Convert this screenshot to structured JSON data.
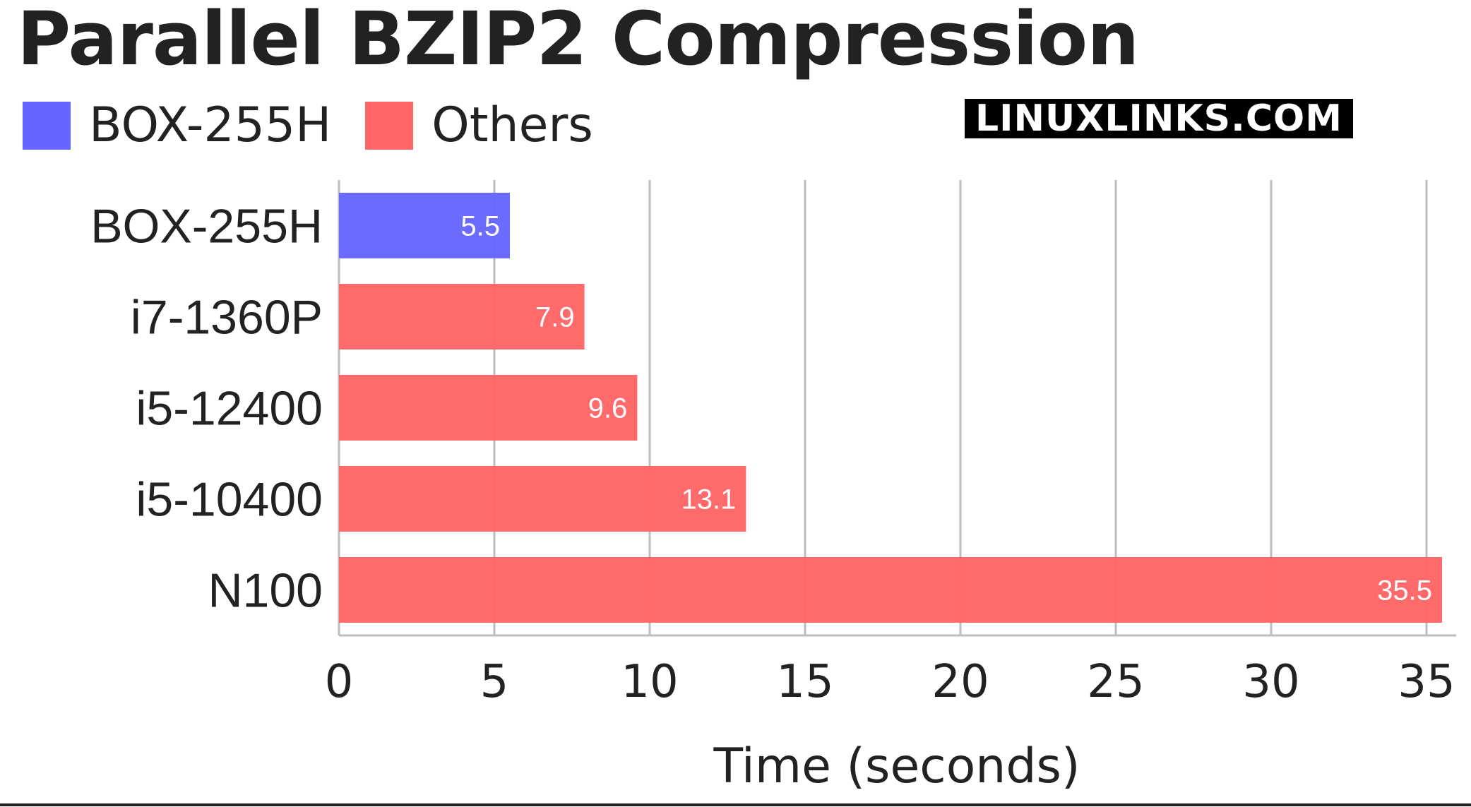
{
  "chart_data": {
    "type": "bar",
    "orientation": "horizontal",
    "title": "Parallel BZIP2 Compression",
    "xlabel": "Time (seconds)",
    "ylabel": "",
    "categories": [
      "BOX-255H",
      "i7-1360P",
      "i5-12400",
      "i5-10400",
      "N100"
    ],
    "values": [
      5.5,
      7.9,
      9.6,
      13.1,
      35.5
    ],
    "value_labels": [
      "5.5",
      "7.9",
      "9.6",
      "13.1",
      "35.5"
    ],
    "bar_groups": [
      "BOX-255H",
      "Others",
      "Others",
      "Others",
      "Others"
    ],
    "series": [
      {
        "name": "BOX-255H",
        "color": "#6666ff"
      },
      {
        "name": "Others",
        "color": "#ff6666"
      }
    ],
    "xlim": [
      0,
      35.5
    ],
    "xticks": [
      "0",
      "5",
      "10",
      "15",
      "20",
      "25",
      "30",
      "35"
    ],
    "grid": "vertical",
    "legend_position": "top-left"
  },
  "watermark": "LINUXLINKS.COM"
}
